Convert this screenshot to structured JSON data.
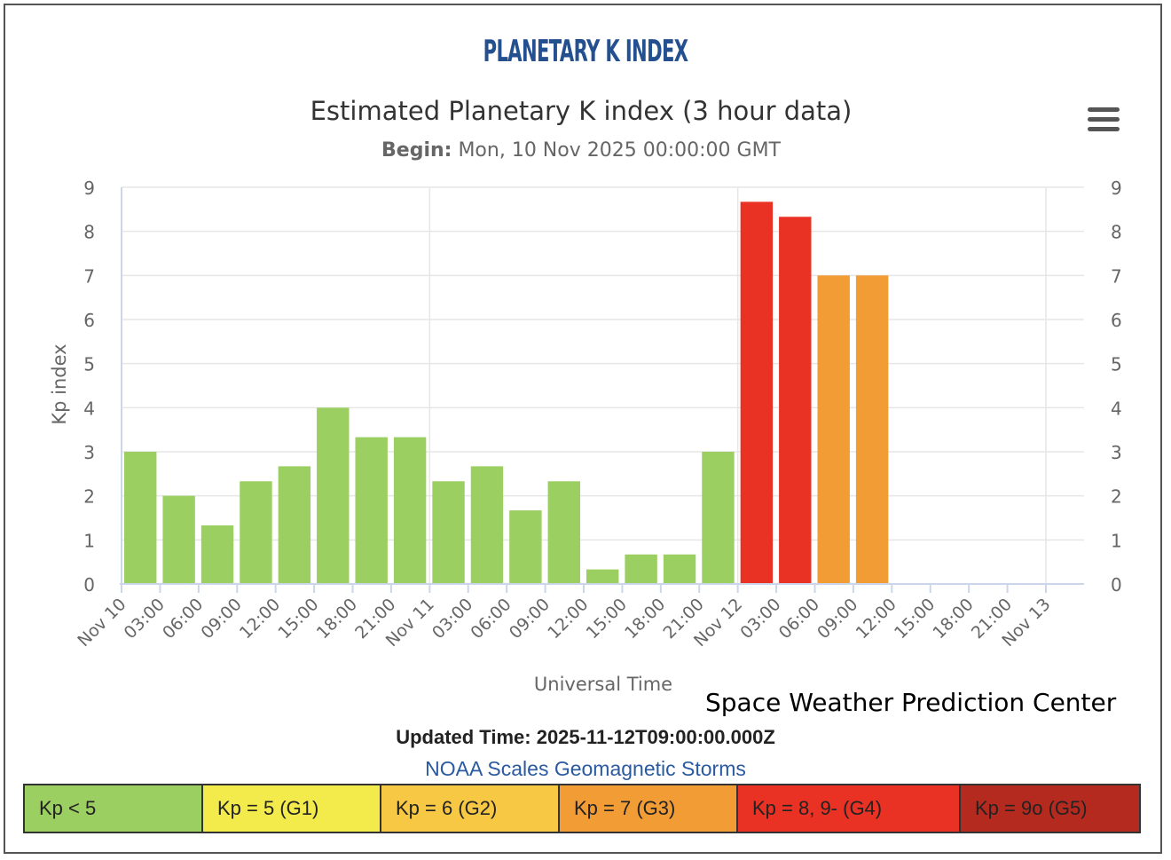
{
  "banner_title": "PLANETARY K INDEX",
  "credit": "Space Weather Prediction Center",
  "updated_label": "Updated Time:",
  "updated_value": "2025-11-12T09:00:00.000Z",
  "scales_link": "NOAA Scales Geomagnetic Storms",
  "menu_icon": "hamburger-menu-icon",
  "legend": [
    {
      "label": "Kp < 5",
      "color": "#9ccf62"
    },
    {
      "label": "Kp = 5 (G1)",
      "color": "#f3ea4c"
    },
    {
      "label": "Kp = 6 (G2)",
      "color": "#f7c843"
    },
    {
      "label": "Kp = 7 (G3)",
      "color": "#f29c36"
    },
    {
      "label": "Kp = 8, 9- (G4)",
      "color": "#e93124"
    },
    {
      "label": "Kp = 9o (G5)",
      "color": "#b52a1f"
    }
  ],
  "chart_data": {
    "type": "bar",
    "title": "Estimated Planetary K index (3 hour data)",
    "subtitle_label": "Begin:",
    "subtitle_value": "Mon, 10 Nov 2025 00:00:00 GMT",
    "xlabel": "Universal Time",
    "ylabel": "Kp index",
    "ylim": [
      0,
      9
    ],
    "yticks": [
      0,
      1,
      2,
      3,
      4,
      5,
      6,
      7,
      8,
      9
    ],
    "xtick_labels": [
      "Nov 10",
      "03:00",
      "06:00",
      "09:00",
      "12:00",
      "15:00",
      "18:00",
      "21:00",
      "Nov 11",
      "03:00",
      "06:00",
      "09:00",
      "12:00",
      "15:00",
      "18:00",
      "21:00",
      "Nov 12",
      "03:00",
      "06:00",
      "09:00",
      "12:00",
      "15:00",
      "18:00",
      "21:00",
      "Nov 13"
    ],
    "grid": true,
    "values": [
      3.0,
      2.0,
      1.33,
      2.33,
      2.67,
      4.0,
      3.33,
      3.33,
      2.33,
      2.67,
      1.67,
      2.33,
      0.33,
      0.67,
      0.67,
      3.0,
      8.67,
      8.33,
      7.0,
      7.0
    ],
    "colors": [
      "#9ccf62",
      "#9ccf62",
      "#9ccf62",
      "#9ccf62",
      "#9ccf62",
      "#9ccf62",
      "#9ccf62",
      "#9ccf62",
      "#9ccf62",
      "#9ccf62",
      "#9ccf62",
      "#9ccf62",
      "#9ccf62",
      "#9ccf62",
      "#9ccf62",
      "#9ccf62",
      "#e93124",
      "#e93124",
      "#f29c36",
      "#f29c36"
    ]
  }
}
